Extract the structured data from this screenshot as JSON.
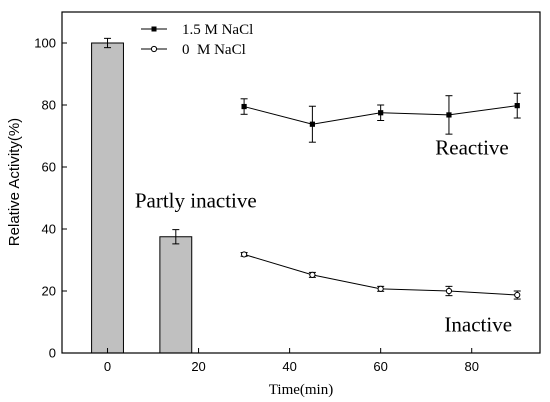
{
  "chart_data": {
    "type": "bar+line",
    "xlabel": "Time(min)",
    "ylabel": "Relative Activity(%)",
    "xlim": [
      -10,
      95
    ],
    "ylim": [
      0,
      110
    ],
    "xticks": [
      0,
      20,
      40,
      60,
      80
    ],
    "yticks": [
      0,
      20,
      40,
      60,
      80,
      100
    ],
    "grid": false,
    "legend_position": "top-left",
    "bars": {
      "x": [
        0,
        15
      ],
      "values": [
        100,
        37.5
      ],
      "errors": [
        1.5,
        2.3
      ],
      "width": 7,
      "color": "#c0c0c0"
    },
    "series": [
      {
        "name": "1.5 M NaCl",
        "marker": "filled-square",
        "x": [
          30,
          45,
          60,
          75,
          90
        ],
        "y": [
          79.5,
          73.8,
          77.5,
          76.8,
          79.8
        ],
        "err": [
          2.5,
          5.8,
          2.5,
          6.2,
          4.0
        ]
      },
      {
        "name": "0  M NaCl",
        "marker": "open-circle",
        "x": [
          30,
          45,
          60,
          75,
          90
        ],
        "y": [
          31.8,
          25.2,
          20.7,
          20.0,
          18.7
        ],
        "err": [
          0.6,
          0.8,
          0.8,
          1.5,
          1.3
        ]
      }
    ],
    "annotations": [
      {
        "text": "Partly inactive",
        "x": 6,
        "y": 47
      },
      {
        "text": "Reactive",
        "x": 72,
        "y": 64
      },
      {
        "text": "Inactive",
        "x": 74,
        "y": 7
      }
    ]
  }
}
